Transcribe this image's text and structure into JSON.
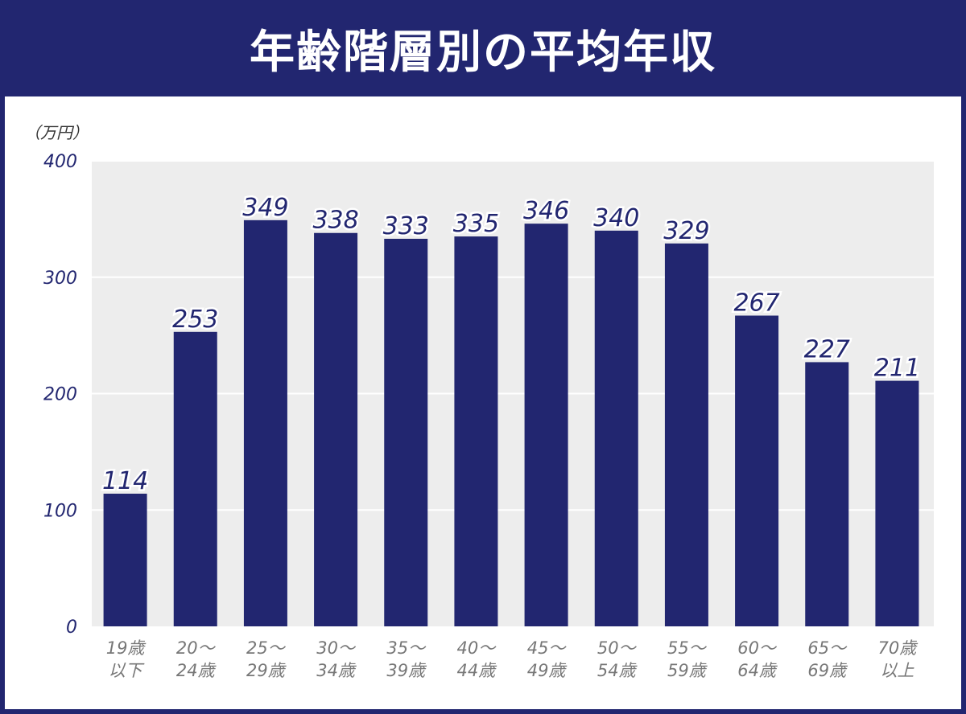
{
  "title": "年齢階層別の平均年収",
  "colors": {
    "background": "#222670",
    "bar": "#222670",
    "plot_area": "#ededed",
    "gridline": "#ffffff"
  },
  "chart_data": {
    "type": "bar",
    "title": "年齢階層別の平均年収",
    "ylabel": "（万円）",
    "xlabel": "",
    "ylim": [
      0,
      400
    ],
    "yticks": [
      0,
      100,
      200,
      300,
      400
    ],
    "grid": true,
    "categories": [
      [
        "19歳",
        "以下"
      ],
      [
        "20〜",
        "24歳"
      ],
      [
        "25〜",
        "29歳"
      ],
      [
        "30〜",
        "34歳"
      ],
      [
        "35〜",
        "39歳"
      ],
      [
        "40〜",
        "44歳"
      ],
      [
        "45〜",
        "49歳"
      ],
      [
        "50〜",
        "54歳"
      ],
      [
        "55〜",
        "59歳"
      ],
      [
        "60〜",
        "64歳"
      ],
      [
        "65〜",
        "69歳"
      ],
      [
        "70歳",
        "以上"
      ]
    ],
    "values": [
      114,
      253,
      349,
      338,
      333,
      335,
      346,
      340,
      329,
      267,
      227,
      211
    ]
  }
}
